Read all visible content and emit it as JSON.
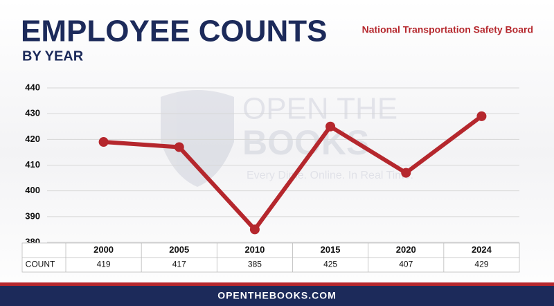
{
  "chart_data": {
    "type": "line",
    "title": "EMPLOYEE COUNTS",
    "subtitle": "BY YEAR",
    "source": "National Transportation Safety Board",
    "categories": [
      "2000",
      "2005",
      "2010",
      "2015",
      "2020",
      "2024"
    ],
    "series": [
      {
        "name": "COUNT",
        "color": "#b5272d",
        "values": [
          419,
          417,
          385,
          425,
          407,
          429
        ]
      }
    ],
    "ylim": [
      380,
      440
    ],
    "yticks": [
      380,
      390,
      400,
      410,
      420,
      430,
      440
    ],
    "grid": true
  },
  "watermark": {
    "lines": [
      "OPEN THE",
      "BOOKS",
      "Every Dime. Online. In Real Time."
    ]
  },
  "footer": "OPENTHEBOOKS.COM"
}
